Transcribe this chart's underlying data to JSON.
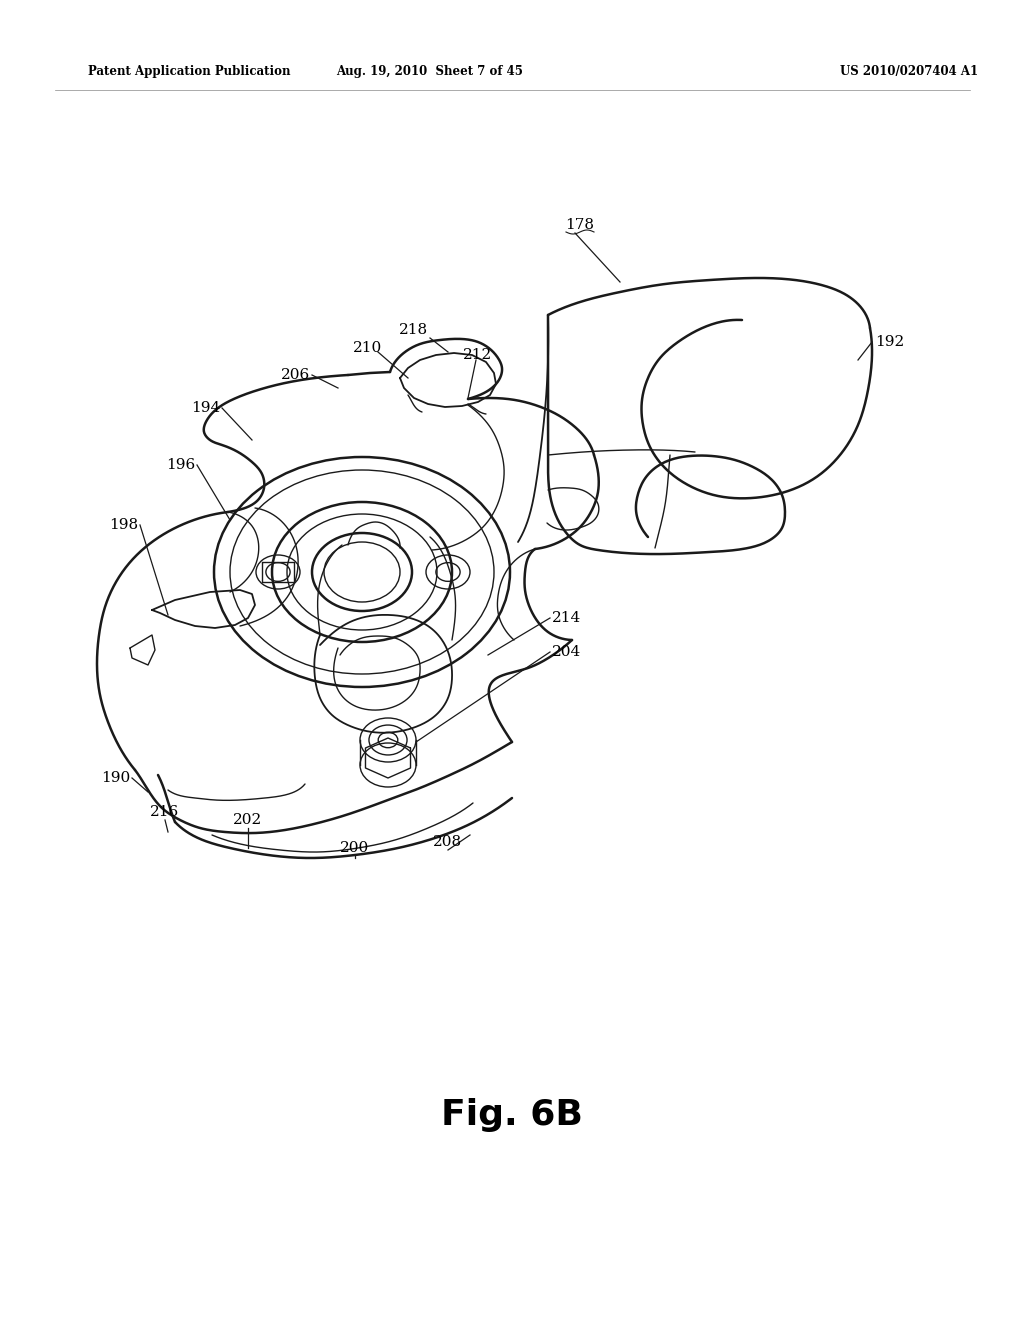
{
  "header_left": "Patent Application Publication",
  "header_mid": "Aug. 19, 2010  Sheet 7 of 45",
  "header_right": "US 2010/0207404 A1",
  "figure_label": "Fig. 6B",
  "bg_color": "#ffffff",
  "line_color": "#1a1a1a",
  "text_color": "#000000",
  "lw_main": 1.8,
  "lw_thin": 1.0,
  "lw_med": 1.3
}
